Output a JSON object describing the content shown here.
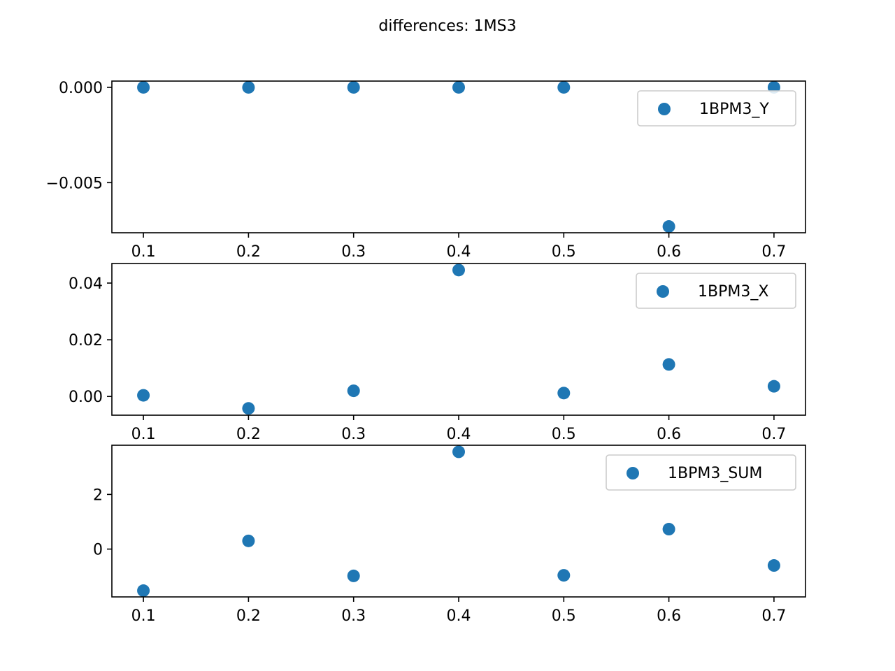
{
  "figure": {
    "title": "differences: 1MS3"
  },
  "colors": {
    "marker": "#1f77b4",
    "axes": "#000000",
    "legend_border": "#cccccc",
    "background": "#ffffff"
  },
  "chart_data": [
    {
      "type": "scatter",
      "x": [
        0.1,
        0.2,
        0.3,
        0.4,
        0.5,
        0.6,
        0.7
      ],
      "series": [
        {
          "name": "1BPM3_Y",
          "values": [
            0.0,
            0.0,
            0.0,
            0.0,
            0.0,
            -0.0073,
            0.0
          ]
        }
      ],
      "xlim": [
        0.07,
        0.73
      ],
      "ylim": [
        -0.00763,
        0.00033
      ],
      "xticks": [
        0.1,
        0.2,
        0.3,
        0.4,
        0.5,
        0.6,
        0.7
      ],
      "xtick_labels": [
        "0.1",
        "0.2",
        "0.3",
        "0.4",
        "0.5",
        "0.6",
        "0.7"
      ],
      "yticks": [
        0.0,
        -0.005
      ],
      "ytick_labels": [
        "0.000",
        "−0.005"
      ],
      "legend": "upper right",
      "grid": false
    },
    {
      "type": "scatter",
      "x": [
        0.1,
        0.2,
        0.3,
        0.4,
        0.5,
        0.6,
        0.7
      ],
      "series": [
        {
          "name": "1BPM3_X",
          "values": [
            0.0004,
            -0.0042,
            0.002,
            0.0446,
            0.0012,
            0.0113,
            0.0036
          ]
        }
      ],
      "xlim": [
        0.07,
        0.73
      ],
      "ylim": [
        -0.0066,
        0.0469
      ],
      "xticks": [
        0.1,
        0.2,
        0.3,
        0.4,
        0.5,
        0.6,
        0.7
      ],
      "xtick_labels": [
        "0.1",
        "0.2",
        "0.3",
        "0.4",
        "0.5",
        "0.6",
        "0.7"
      ],
      "yticks": [
        0.04,
        0.02,
        0.0
      ],
      "ytick_labels": [
        "0.04",
        "0.02",
        "0.00"
      ],
      "legend": "upper right",
      "grid": false
    },
    {
      "type": "scatter",
      "x": [
        0.1,
        0.2,
        0.3,
        0.4,
        0.5,
        0.6,
        0.7
      ],
      "series": [
        {
          "name": "1BPM3_SUM",
          "values": [
            -1.52,
            0.3,
            -0.98,
            3.56,
            -0.96,
            0.73,
            -0.6
          ]
        }
      ],
      "xlim": [
        0.07,
        0.73
      ],
      "ylim": [
        -1.75,
        3.8
      ],
      "xticks": [
        0.1,
        0.2,
        0.3,
        0.4,
        0.5,
        0.6,
        0.7
      ],
      "xtick_labels": [
        "0.1",
        "0.2",
        "0.3",
        "0.4",
        "0.5",
        "0.6",
        "0.7"
      ],
      "yticks": [
        2,
        0
      ],
      "ytick_labels": [
        "2",
        "0"
      ],
      "legend": "upper right",
      "grid": false
    }
  ]
}
